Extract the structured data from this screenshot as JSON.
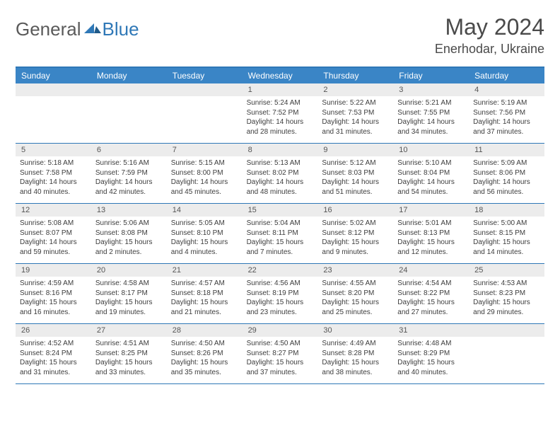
{
  "logo": {
    "general": "General",
    "blue": "Blue"
  },
  "title": "May 2024",
  "location": "Enerhodar, Ukraine",
  "colors": {
    "header_bg": "#3a85c6",
    "header_text": "#ffffff",
    "border": "#2f78b7",
    "daynum_bg": "#ececec",
    "body_text": "#3d3d3d"
  },
  "weekdays": [
    "Sunday",
    "Monday",
    "Tuesday",
    "Wednesday",
    "Thursday",
    "Friday",
    "Saturday"
  ],
  "weeks": [
    [
      null,
      null,
      null,
      {
        "n": "1",
        "sr": "5:24 AM",
        "ss": "7:52 PM",
        "dl": "14 hours and 28 minutes."
      },
      {
        "n": "2",
        "sr": "5:22 AM",
        "ss": "7:53 PM",
        "dl": "14 hours and 31 minutes."
      },
      {
        "n": "3",
        "sr": "5:21 AM",
        "ss": "7:55 PM",
        "dl": "14 hours and 34 minutes."
      },
      {
        "n": "4",
        "sr": "5:19 AM",
        "ss": "7:56 PM",
        "dl": "14 hours and 37 minutes."
      }
    ],
    [
      {
        "n": "5",
        "sr": "5:18 AM",
        "ss": "7:58 PM",
        "dl": "14 hours and 40 minutes."
      },
      {
        "n": "6",
        "sr": "5:16 AM",
        "ss": "7:59 PM",
        "dl": "14 hours and 42 minutes."
      },
      {
        "n": "7",
        "sr": "5:15 AM",
        "ss": "8:00 PM",
        "dl": "14 hours and 45 minutes."
      },
      {
        "n": "8",
        "sr": "5:13 AM",
        "ss": "8:02 PM",
        "dl": "14 hours and 48 minutes."
      },
      {
        "n": "9",
        "sr": "5:12 AM",
        "ss": "8:03 PM",
        "dl": "14 hours and 51 minutes."
      },
      {
        "n": "10",
        "sr": "5:10 AM",
        "ss": "8:04 PM",
        "dl": "14 hours and 54 minutes."
      },
      {
        "n": "11",
        "sr": "5:09 AM",
        "ss": "8:06 PM",
        "dl": "14 hours and 56 minutes."
      }
    ],
    [
      {
        "n": "12",
        "sr": "5:08 AM",
        "ss": "8:07 PM",
        "dl": "14 hours and 59 minutes."
      },
      {
        "n": "13",
        "sr": "5:06 AM",
        "ss": "8:08 PM",
        "dl": "15 hours and 2 minutes."
      },
      {
        "n": "14",
        "sr": "5:05 AM",
        "ss": "8:10 PM",
        "dl": "15 hours and 4 minutes."
      },
      {
        "n": "15",
        "sr": "5:04 AM",
        "ss": "8:11 PM",
        "dl": "15 hours and 7 minutes."
      },
      {
        "n": "16",
        "sr": "5:02 AM",
        "ss": "8:12 PM",
        "dl": "15 hours and 9 minutes."
      },
      {
        "n": "17",
        "sr": "5:01 AM",
        "ss": "8:13 PM",
        "dl": "15 hours and 12 minutes."
      },
      {
        "n": "18",
        "sr": "5:00 AM",
        "ss": "8:15 PM",
        "dl": "15 hours and 14 minutes."
      }
    ],
    [
      {
        "n": "19",
        "sr": "4:59 AM",
        "ss": "8:16 PM",
        "dl": "15 hours and 16 minutes."
      },
      {
        "n": "20",
        "sr": "4:58 AM",
        "ss": "8:17 PM",
        "dl": "15 hours and 19 minutes."
      },
      {
        "n": "21",
        "sr": "4:57 AM",
        "ss": "8:18 PM",
        "dl": "15 hours and 21 minutes."
      },
      {
        "n": "22",
        "sr": "4:56 AM",
        "ss": "8:19 PM",
        "dl": "15 hours and 23 minutes."
      },
      {
        "n": "23",
        "sr": "4:55 AM",
        "ss": "8:20 PM",
        "dl": "15 hours and 25 minutes."
      },
      {
        "n": "24",
        "sr": "4:54 AM",
        "ss": "8:22 PM",
        "dl": "15 hours and 27 minutes."
      },
      {
        "n": "25",
        "sr": "4:53 AM",
        "ss": "8:23 PM",
        "dl": "15 hours and 29 minutes."
      }
    ],
    [
      {
        "n": "26",
        "sr": "4:52 AM",
        "ss": "8:24 PM",
        "dl": "15 hours and 31 minutes."
      },
      {
        "n": "27",
        "sr": "4:51 AM",
        "ss": "8:25 PM",
        "dl": "15 hours and 33 minutes."
      },
      {
        "n": "28",
        "sr": "4:50 AM",
        "ss": "8:26 PM",
        "dl": "15 hours and 35 minutes."
      },
      {
        "n": "29",
        "sr": "4:50 AM",
        "ss": "8:27 PM",
        "dl": "15 hours and 37 minutes."
      },
      {
        "n": "30",
        "sr": "4:49 AM",
        "ss": "8:28 PM",
        "dl": "15 hours and 38 minutes."
      },
      {
        "n": "31",
        "sr": "4:48 AM",
        "ss": "8:29 PM",
        "dl": "15 hours and 40 minutes."
      },
      null
    ]
  ],
  "labels": {
    "sunrise": "Sunrise:",
    "sunset": "Sunset:",
    "daylight": "Daylight:"
  }
}
